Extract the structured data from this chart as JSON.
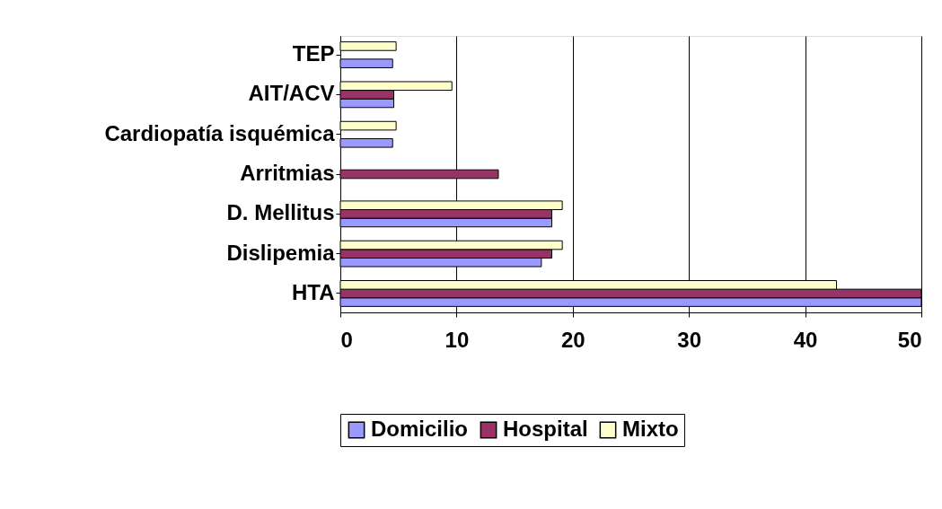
{
  "chart_data": {
    "type": "bar",
    "orientation": "horizontal",
    "categories": [
      "TEP",
      "AIT/ACV",
      "Cardiopatía isquémica",
      "Arritmias",
      "D. Mellitus",
      "Dislipemia",
      "HTA"
    ],
    "series": [
      {
        "name": "Domicilio",
        "color": "#9999ff",
        "values": [
          4.5,
          4.6,
          4.5,
          null,
          18.2,
          17.3,
          50
        ]
      },
      {
        "name": "Hospital",
        "color": "#993366",
        "values": [
          null,
          4.6,
          null,
          13.6,
          18.2,
          18.2,
          50
        ]
      },
      {
        "name": "Mixto",
        "color": "#ffffcc",
        "values": [
          4.8,
          9.6,
          4.8,
          null,
          19.1,
          19.1,
          42.7
        ]
      }
    ],
    "xlim": [
      0,
      50
    ],
    "xticks": [
      0,
      10,
      20,
      30,
      40,
      50
    ],
    "grid": "x",
    "legend": "bottom"
  }
}
